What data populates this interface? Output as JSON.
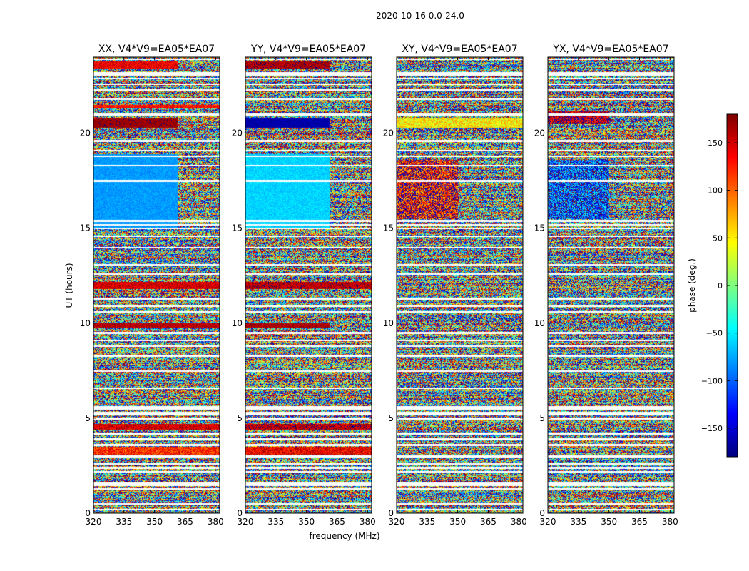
{
  "chart_data": {
    "type": "heatmap",
    "suptitle": "2020-10-16 0.0-24.0",
    "xlabel": "frequency (MHz)",
    "ylabel": "UT (hours)",
    "xlim": [
      320,
      382
    ],
    "ylim": [
      0,
      24
    ],
    "xticks": [
      320,
      335,
      350,
      365,
      380
    ],
    "yticks": [
      0,
      5,
      10,
      15,
      20
    ],
    "colorbar": {
      "label": "phase (deg.)",
      "colormap": "jet",
      "range": [
        -180,
        180
      ],
      "ticks": [
        150,
        100,
        50,
        0,
        -50,
        -100,
        -150
      ],
      "tick_labels": [
        "150",
        "100",
        "50",
        "0",
        "−50",
        "−100",
        "−150"
      ]
    },
    "panels": [
      {
        "title": "XX, V4*V9=EA05*EA07",
        "bands": [
          {
            "t0": 15.0,
            "t1": 18.9,
            "f1": 361,
            "phase": -80,
            "spread": 14
          },
          {
            "t0": 9.8,
            "t1": 10.0,
            "f1": 382,
            "phase": 160,
            "spread": 20
          },
          {
            "t0": 11.8,
            "t1": 12.2,
            "f1": 382,
            "phase": 150,
            "spread": 25
          },
          {
            "t0": 20.3,
            "t1": 20.8,
            "f1": 361,
            "phase": 170,
            "spread": 12
          },
          {
            "t0": 21.3,
            "t1": 21.5,
            "f1": 382,
            "phase": 130,
            "spread": 25
          },
          {
            "t0": 23.4,
            "t1": 23.8,
            "f1": 361,
            "phase": 140,
            "spread": 25
          },
          {
            "t0": 3.1,
            "t1": 3.5,
            "f1": 382,
            "phase": 120,
            "spread": 40
          },
          {
            "t0": 4.4,
            "t1": 4.7,
            "f1": 382,
            "phase": 150,
            "spread": 30
          }
        ]
      },
      {
        "title": "YY, V4*V9=EA05*EA07",
        "bands": [
          {
            "t0": 15.0,
            "t1": 18.9,
            "f1": 361,
            "phase": -60,
            "spread": 14
          },
          {
            "t0": 20.3,
            "t1": 20.8,
            "f1": 361,
            "phase": -165,
            "spread": 12
          },
          {
            "t0": 9.8,
            "t1": 10.0,
            "f1": 361,
            "phase": 165,
            "spread": 15
          },
          {
            "t0": 11.8,
            "t1": 12.2,
            "f1": 382,
            "phase": 160,
            "spread": 25
          },
          {
            "t0": 23.4,
            "t1": 23.8,
            "f1": 361,
            "phase": 165,
            "spread": 20
          },
          {
            "t0": 3.1,
            "t1": 3.5,
            "f1": 382,
            "phase": 140,
            "spread": 40
          },
          {
            "t0": 4.4,
            "t1": 4.7,
            "f1": 382,
            "phase": 160,
            "spread": 30
          }
        ]
      },
      {
        "title": "XY, V4*V9=EA05*EA07",
        "bands": [
          {
            "t0": 15.5,
            "t1": 18.6,
            "f1": 350,
            "phase": 140,
            "spread": 90
          },
          {
            "t0": 20.3,
            "t1": 20.8,
            "f1": 382,
            "phase": 50,
            "spread": 40
          }
        ]
      },
      {
        "title": "YX, V4*V9=EA05*EA07",
        "bands": [
          {
            "t0": 15.5,
            "t1": 18.6,
            "f1": 350,
            "phase": -110,
            "spread": 90
          },
          {
            "t0": 20.5,
            "t1": 21.2,
            "f1": 350,
            "phase": 160,
            "spread": 60
          }
        ]
      }
    ],
    "flagged_hours": [
      0.2,
      0.5,
      1.3,
      1.5,
      1.6,
      2.2,
      2.4,
      2.6,
      3.0,
      3.6,
      3.9,
      4.2,
      5.0,
      5.2,
      5.3,
      5.5,
      5.6,
      6.6,
      7.5,
      8.3,
      8.8,
      9.1,
      9.5,
      10.6,
      10.9,
      11.3,
      12.6,
      13.1,
      14.0,
      14.6,
      15.0,
      15.2,
      15.4,
      17.5,
      18.3,
      18.8,
      19.1,
      19.6,
      21.0,
      21.8,
      22.3,
      22.6,
      22.9,
      23.1,
      23.2,
      23.9
    ]
  }
}
